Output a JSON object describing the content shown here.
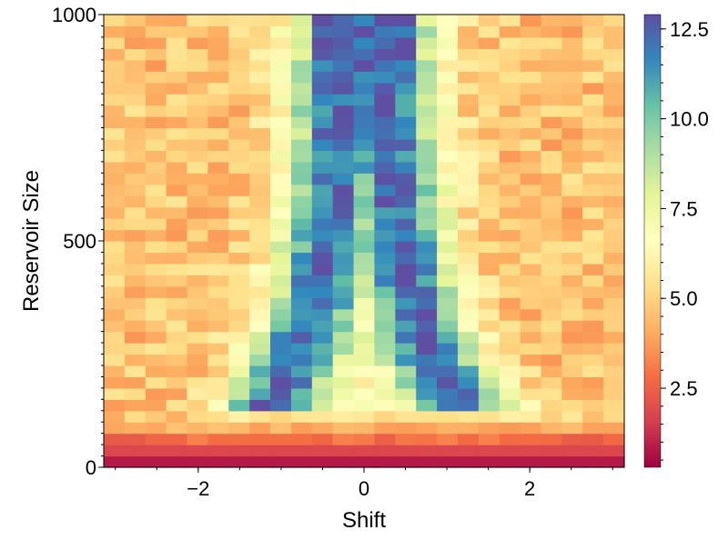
{
  "chart_data": {
    "type": "heatmap",
    "xlabel": "Shift",
    "ylabel": "Reservoir Size",
    "x_range": [
      -3.14,
      3.14
    ],
    "y_range": [
      0,
      1000
    ],
    "x_ticks": [
      -2,
      0,
      2
    ],
    "y_ticks": [
      0,
      500,
      1000
    ],
    "x_bins": 25,
    "y_bins": 40,
    "colorbar": {
      "range": [
        0.3,
        12.9
      ],
      "ticks": [
        2.5,
        5.0,
        7.5,
        10.0,
        12.5
      ],
      "colormap": "Spectral"
    },
    "description_values": {
      "center_column_peak_at_top": 12.5,
      "edge_columns_typical": 4.5,
      "bottom_rows_min": 0.5
    }
  }
}
